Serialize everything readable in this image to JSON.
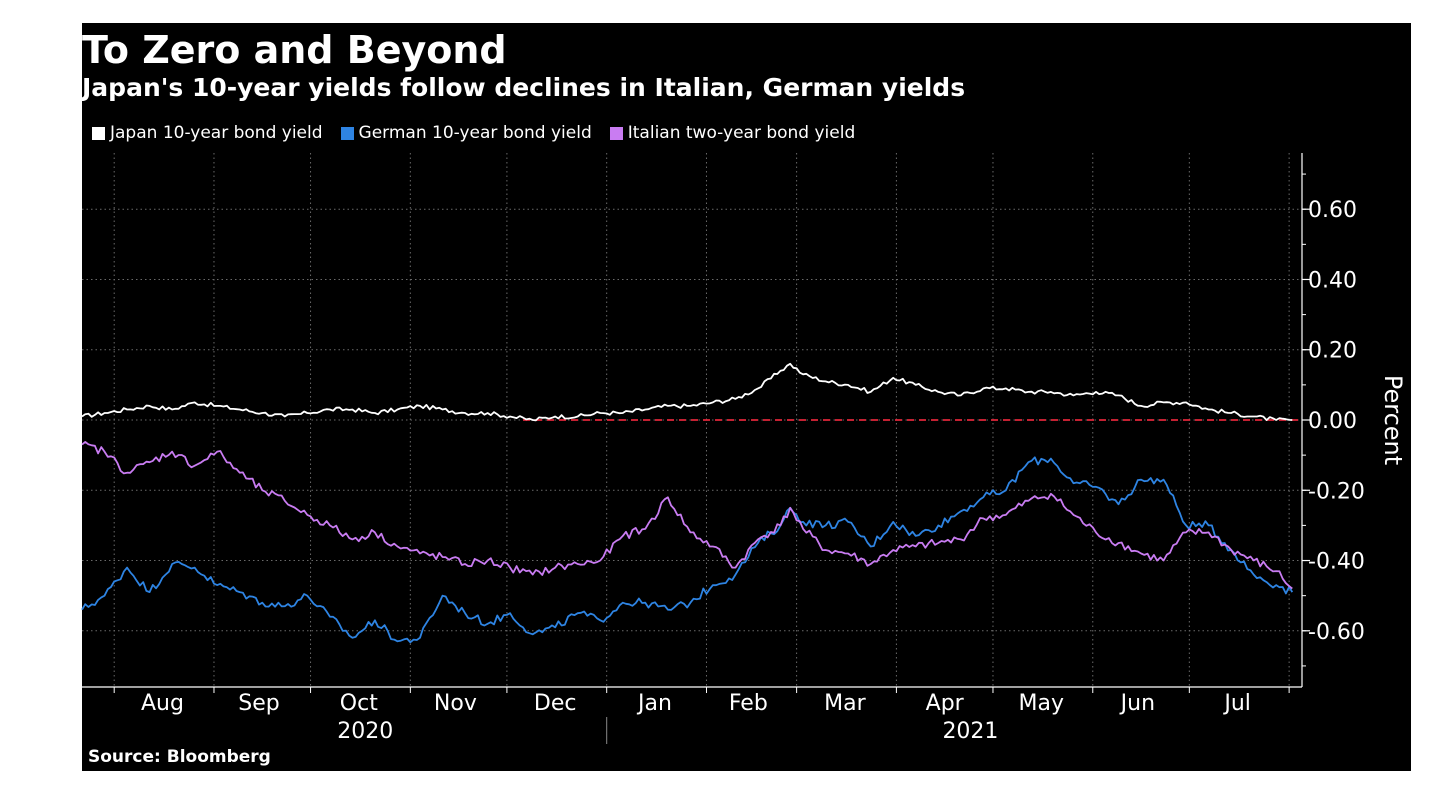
{
  "title": "To Zero and Beyond",
  "subtitle": "Japan's 10-year yields follow declines in Italian, German yields",
  "source": "Source: Bloomberg",
  "colors": {
    "background": "#000000",
    "japan": "#ffffff",
    "german": "#2e84e3",
    "italian": "#c97cf2",
    "zero_line": "#e0263a",
    "grid": "#6a6a6a"
  },
  "chart_data": {
    "type": "line",
    "title": "To Zero and Beyond",
    "subtitle": "Japan's 10-year yields follow declines in Italian, German yields",
    "ylabel": "Percent",
    "xlabel": "",
    "ylim": [
      -0.76,
      0.76
    ],
    "xlim": [
      "2020-07-22",
      "2021-08-05"
    ],
    "yticks": [
      0.6,
      0.4,
      0.2,
      0.0,
      -0.2,
      -0.4,
      -0.6
    ],
    "ytick_labels": [
      "0.60",
      "0.40",
      "0.20",
      "0.00",
      "-0.20",
      "-0.40",
      "-0.60"
    ],
    "xtick_labels": [
      {
        "label": "Aug",
        "date": "2020-08-16"
      },
      {
        "label": "Sep",
        "date": "2020-09-15"
      },
      {
        "label": "Oct",
        "date": "2020-10-16"
      },
      {
        "label": "Nov",
        "date": "2020-11-15"
      },
      {
        "label": "Dec",
        "date": "2020-12-16"
      },
      {
        "label": "Jan",
        "date": "2021-01-16"
      },
      {
        "label": "Feb",
        "date": "2021-02-14"
      },
      {
        "label": "Mar",
        "date": "2021-03-16"
      },
      {
        "label": "Apr",
        "date": "2021-04-16"
      },
      {
        "label": "May",
        "date": "2021-05-16"
      },
      {
        "label": "Jun",
        "date": "2021-06-15"
      },
      {
        "label": "Jul",
        "date": "2021-07-16"
      }
    ],
    "year_labels": [
      {
        "label": "2020",
        "date": "2020-10-18"
      },
      {
        "label": "2021",
        "date": "2021-04-24"
      }
    ],
    "grid": true,
    "legend_position": "top-left",
    "reference_line": {
      "y": 0.0,
      "from": "2020-12-06",
      "style": "dashed"
    },
    "series": [
      {
        "name": "Japan 10-year bond yield",
        "color": "#ffffff",
        "points": [
          [
            "2020-07-22",
            0.01
          ],
          [
            "2020-07-29",
            0.02
          ],
          [
            "2020-08-05",
            0.03
          ],
          [
            "2020-08-12",
            0.04
          ],
          [
            "2020-08-19",
            0.03
          ],
          [
            "2020-08-26",
            0.05
          ],
          [
            "2020-09-02",
            0.04
          ],
          [
            "2020-09-09",
            0.03
          ],
          [
            "2020-09-16",
            0.02
          ],
          [
            "2020-09-23",
            0.01
          ],
          [
            "2020-09-30",
            0.02
          ],
          [
            "2020-10-07",
            0.03
          ],
          [
            "2020-10-14",
            0.03
          ],
          [
            "2020-10-21",
            0.02
          ],
          [
            "2020-10-28",
            0.03
          ],
          [
            "2020-11-04",
            0.04
          ],
          [
            "2020-11-11",
            0.03
          ],
          [
            "2020-11-18",
            0.02
          ],
          [
            "2020-11-25",
            0.02
          ],
          [
            "2020-12-02",
            0.01
          ],
          [
            "2020-12-09",
            0.0
          ],
          [
            "2020-12-16",
            0.01
          ],
          [
            "2020-12-23",
            0.01
          ],
          [
            "2020-12-30",
            0.02
          ],
          [
            "2021-01-06",
            0.02
          ],
          [
            "2021-01-13",
            0.03
          ],
          [
            "2021-01-20",
            0.04
          ],
          [
            "2021-01-27",
            0.04
          ],
          [
            "2021-02-03",
            0.05
          ],
          [
            "2021-02-10",
            0.06
          ],
          [
            "2021-02-17",
            0.09
          ],
          [
            "2021-02-24",
            0.14
          ],
          [
            "2021-02-27",
            0.16
          ],
          [
            "2021-03-03",
            0.13
          ],
          [
            "2021-03-10",
            0.11
          ],
          [
            "2021-03-17",
            0.1
          ],
          [
            "2021-03-24",
            0.08
          ],
          [
            "2021-03-31",
            0.12
          ],
          [
            "2021-04-07",
            0.1
          ],
          [
            "2021-04-14",
            0.08
          ],
          [
            "2021-04-21",
            0.07
          ],
          [
            "2021-04-28",
            0.09
          ],
          [
            "2021-05-05",
            0.09
          ],
          [
            "2021-05-12",
            0.08
          ],
          [
            "2021-05-19",
            0.08
          ],
          [
            "2021-05-26",
            0.07
          ],
          [
            "2021-06-02",
            0.08
          ],
          [
            "2021-06-09",
            0.07
          ],
          [
            "2021-06-16",
            0.04
          ],
          [
            "2021-06-23",
            0.05
          ],
          [
            "2021-06-30",
            0.05
          ],
          [
            "2021-07-07",
            0.03
          ],
          [
            "2021-07-14",
            0.02
          ],
          [
            "2021-07-21",
            0.01
          ],
          [
            "2021-07-28",
            0.0
          ],
          [
            "2021-08-02",
            0.0
          ]
        ]
      },
      {
        "name": "German 10-year bond yield",
        "color": "#2e84e3",
        "points": [
          [
            "2020-07-22",
            -0.54
          ],
          [
            "2020-07-29",
            -0.5
          ],
          [
            "2020-08-05",
            -0.42
          ],
          [
            "2020-08-12",
            -0.49
          ],
          [
            "2020-08-19",
            -0.41
          ],
          [
            "2020-08-26",
            -0.42
          ],
          [
            "2020-09-02",
            -0.47
          ],
          [
            "2020-09-09",
            -0.49
          ],
          [
            "2020-09-16",
            -0.52
          ],
          [
            "2020-09-23",
            -0.53
          ],
          [
            "2020-09-30",
            -0.5
          ],
          [
            "2020-10-07",
            -0.56
          ],
          [
            "2020-10-14",
            -0.62
          ],
          [
            "2020-10-21",
            -0.57
          ],
          [
            "2020-10-28",
            -0.63
          ],
          [
            "2020-11-04",
            -0.62
          ],
          [
            "2020-11-11",
            -0.5
          ],
          [
            "2020-11-18",
            -0.55
          ],
          [
            "2020-11-25",
            -0.58
          ],
          [
            "2020-12-02",
            -0.55
          ],
          [
            "2020-12-09",
            -0.61
          ],
          [
            "2020-12-16",
            -0.59
          ],
          [
            "2020-12-23",
            -0.55
          ],
          [
            "2020-12-30",
            -0.57
          ],
          [
            "2021-01-06",
            -0.52
          ],
          [
            "2021-01-13",
            -0.52
          ],
          [
            "2021-01-20",
            -0.54
          ],
          [
            "2021-01-27",
            -0.52
          ],
          [
            "2021-02-03",
            -0.47
          ],
          [
            "2021-02-10",
            -0.44
          ],
          [
            "2021-02-17",
            -0.35
          ],
          [
            "2021-02-24",
            -0.3
          ],
          [
            "2021-02-27",
            -0.25
          ],
          [
            "2021-03-03",
            -0.29
          ],
          [
            "2021-03-10",
            -0.3
          ],
          [
            "2021-03-17",
            -0.29
          ],
          [
            "2021-03-24",
            -0.36
          ],
          [
            "2021-03-31",
            -0.29
          ],
          [
            "2021-04-07",
            -0.33
          ],
          [
            "2021-04-14",
            -0.3
          ],
          [
            "2021-04-21",
            -0.26
          ],
          [
            "2021-04-28",
            -0.22
          ],
          [
            "2021-05-05",
            -0.2
          ],
          [
            "2021-05-12",
            -0.12
          ],
          [
            "2021-05-19",
            -0.11
          ],
          [
            "2021-05-26",
            -0.18
          ],
          [
            "2021-06-02",
            -0.19
          ],
          [
            "2021-06-09",
            -0.24
          ],
          [
            "2021-06-16",
            -0.17
          ],
          [
            "2021-06-23",
            -0.17
          ],
          [
            "2021-06-30",
            -0.3
          ],
          [
            "2021-07-07",
            -0.3
          ],
          [
            "2021-07-14",
            -0.37
          ],
          [
            "2021-07-21",
            -0.44
          ],
          [
            "2021-07-28",
            -0.47
          ],
          [
            "2021-08-02",
            -0.49
          ]
        ]
      },
      {
        "name": "Italian two-year bond yield",
        "color": "#c97cf2",
        "points": [
          [
            "2020-07-22",
            -0.07
          ],
          [
            "2020-07-29",
            -0.09
          ],
          [
            "2020-08-05",
            -0.15
          ],
          [
            "2020-08-12",
            -0.12
          ],
          [
            "2020-08-19",
            -0.09
          ],
          [
            "2020-08-26",
            -0.13
          ],
          [
            "2020-09-02",
            -0.09
          ],
          [
            "2020-09-09",
            -0.15
          ],
          [
            "2020-09-16",
            -0.2
          ],
          [
            "2020-09-23",
            -0.23
          ],
          [
            "2020-09-30",
            -0.27
          ],
          [
            "2020-10-07",
            -0.3
          ],
          [
            "2020-10-14",
            -0.34
          ],
          [
            "2020-10-21",
            -0.32
          ],
          [
            "2020-10-28",
            -0.36
          ],
          [
            "2020-11-04",
            -0.38
          ],
          [
            "2020-11-11",
            -0.39
          ],
          [
            "2020-11-18",
            -0.41
          ],
          [
            "2020-11-25",
            -0.4
          ],
          [
            "2020-12-02",
            -0.42
          ],
          [
            "2020-12-09",
            -0.44
          ],
          [
            "2020-12-16",
            -0.42
          ],
          [
            "2020-12-23",
            -0.41
          ],
          [
            "2020-12-30",
            -0.4
          ],
          [
            "2021-01-06",
            -0.33
          ],
          [
            "2021-01-13",
            -0.31
          ],
          [
            "2021-01-20",
            -0.22
          ],
          [
            "2021-01-27",
            -0.32
          ],
          [
            "2021-02-03",
            -0.36
          ],
          [
            "2021-02-10",
            -0.42
          ],
          [
            "2021-02-17",
            -0.34
          ],
          [
            "2021-02-24",
            -0.3
          ],
          [
            "2021-02-27",
            -0.25
          ],
          [
            "2021-03-03",
            -0.31
          ],
          [
            "2021-03-10",
            -0.37
          ],
          [
            "2021-03-17",
            -0.38
          ],
          [
            "2021-03-24",
            -0.41
          ],
          [
            "2021-03-31",
            -0.37
          ],
          [
            "2021-04-07",
            -0.36
          ],
          [
            "2021-04-14",
            -0.35
          ],
          [
            "2021-04-21",
            -0.34
          ],
          [
            "2021-04-28",
            -0.28
          ],
          [
            "2021-05-05",
            -0.27
          ],
          [
            "2021-05-12",
            -0.23
          ],
          [
            "2021-05-19",
            -0.21
          ],
          [
            "2021-05-26",
            -0.27
          ],
          [
            "2021-06-02",
            -0.32
          ],
          [
            "2021-06-09",
            -0.35
          ],
          [
            "2021-06-16",
            -0.38
          ],
          [
            "2021-06-23",
            -0.4
          ],
          [
            "2021-06-30",
            -0.32
          ],
          [
            "2021-07-07",
            -0.32
          ],
          [
            "2021-07-14",
            -0.37
          ],
          [
            "2021-07-21",
            -0.4
          ],
          [
            "2021-07-28",
            -0.43
          ],
          [
            "2021-08-02",
            -0.48
          ]
        ]
      }
    ]
  }
}
